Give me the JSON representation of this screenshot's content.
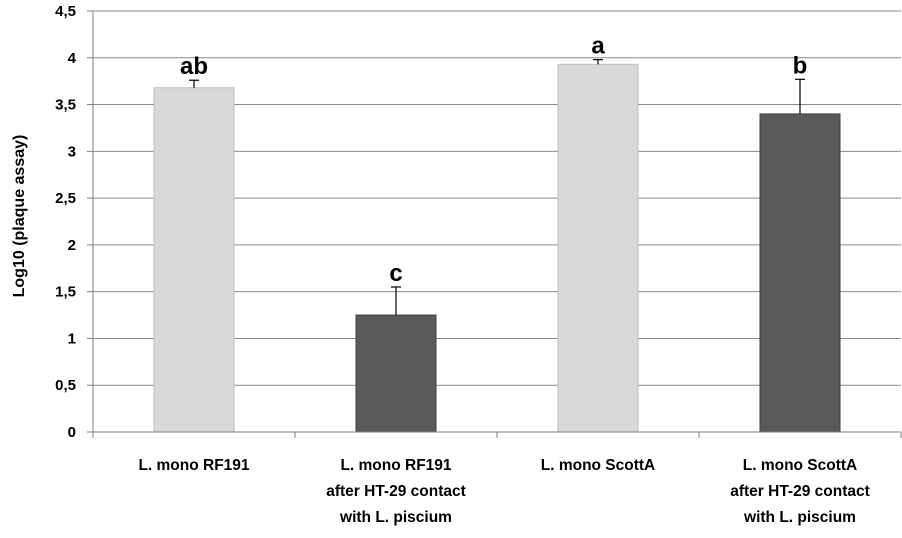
{
  "chart_data": {
    "type": "bar",
    "title": "",
    "xlabel": "",
    "ylabel": "Log10 (plaque assay)",
    "ylim": [
      0,
      4.5
    ],
    "y_ticks": [
      "0",
      "0,5",
      "1",
      "1,5",
      "2",
      "2,5",
      "3",
      "3,5",
      "4",
      "4,5"
    ],
    "y_tick_values": [
      0,
      0.5,
      1,
      1.5,
      2,
      2.5,
      3,
      3.5,
      4,
      4.5
    ],
    "grid": true,
    "legend": "none",
    "categories": [
      [
        "L. mono RF191"
      ],
      [
        "L. mono RF191",
        "after HT-29 contact",
        "with L. piscium"
      ],
      [
        "L. mono ScottA"
      ],
      [
        "L. mono ScottA",
        "after HT-29 contact",
        "with L. piscium"
      ]
    ],
    "values": [
      3.68,
      1.25,
      3.93,
      3.4
    ],
    "errors": [
      0.08,
      0.3,
      0.05,
      0.37
    ],
    "significance_labels": [
      "ab",
      "c",
      "a",
      "b"
    ],
    "bar_colors": [
      "#d9d9d9",
      "#595959",
      "#d9d9d9",
      "#595959"
    ]
  }
}
